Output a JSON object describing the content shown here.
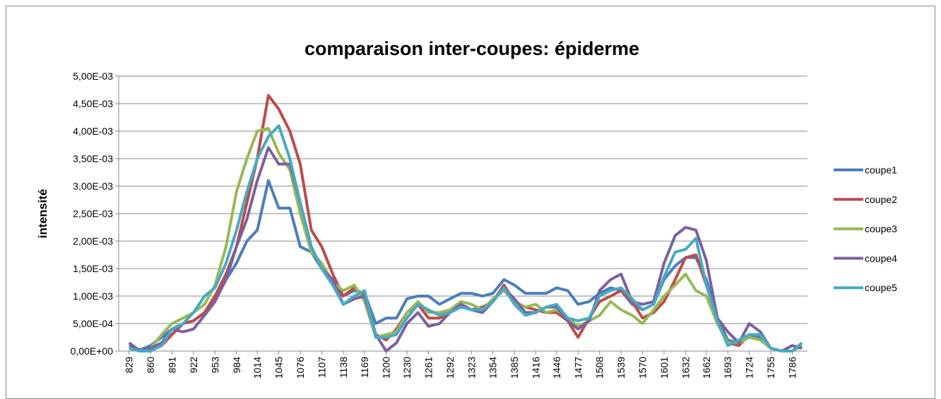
{
  "chart_data": {
    "type": "line",
    "title": "comparaison inter-coupes: épiderme",
    "y_label": "intensité",
    "x": [
      829,
      845,
      860,
      876,
      891,
      907,
      922,
      938,
      953,
      969,
      984,
      999,
      1014,
      1030,
      1045,
      1061,
      1076,
      1092,
      1107,
      1123,
      1138,
      1154,
      1169,
      1185,
      1200,
      1215,
      1230,
      1246,
      1261,
      1277,
      1292,
      1308,
      1323,
      1339,
      1354,
      1370,
      1385,
      1401,
      1416,
      1431,
      1446,
      1462,
      1477,
      1493,
      1508,
      1524,
      1539,
      1555,
      1570,
      1586,
      1601,
      1617,
      1632,
      1647,
      1662,
      1678,
      1693,
      1709,
      1724,
      1740,
      1755,
      1771,
      1786,
      1800
    ],
    "xlim": [
      814,
      1808
    ],
    "xticks": [
      829,
      860,
      891,
      922,
      953,
      984,
      1014,
      1045,
      1076,
      1107,
      1138,
      1169,
      1200,
      1230,
      1261,
      1292,
      1323,
      1354,
      1385,
      1416,
      1446,
      1477,
      1508,
      1539,
      1570,
      1601,
      1632,
      1662,
      1693,
      1724,
      1755,
      1786
    ],
    "ylim": [
      0,
      0.005
    ],
    "yticks": [
      {
        "value": 0,
        "label": "0,00E+00"
      },
      {
        "value": 0.0005,
        "label": "5,00E-04"
      },
      {
        "value": 0.001,
        "label": "1,00E-03"
      },
      {
        "value": 0.0015,
        "label": "1,50E-03"
      },
      {
        "value": 0.002,
        "label": "2,00E-03"
      },
      {
        "value": 0.0025,
        "label": "2,50E-03"
      },
      {
        "value": 0.003,
        "label": "3,00E-03"
      },
      {
        "value": 0.0035,
        "label": "3,50E-03"
      },
      {
        "value": 0.004,
        "label": "4,00E-03"
      },
      {
        "value": 0.0045,
        "label": "4,50E-03"
      },
      {
        "value": 0.005,
        "label": "5,00E-03"
      }
    ],
    "grid": true,
    "legend": "right",
    "series": [
      {
        "name": "coupe1",
        "color": "#4a7ebb",
        "values": [
          0.0001,
          2e-05,
          0.0001,
          0.00025,
          0.0004,
          0.0005,
          0.00055,
          0.0007,
          0.001,
          0.0013,
          0.0016,
          0.002,
          0.0022,
          0.0031,
          0.0026,
          0.0026,
          0.0019,
          0.0018,
          0.0015,
          0.0012,
          0.001,
          0.0011,
          0.00105,
          0.0005,
          0.0006,
          0.0006,
          0.00095,
          0.001,
          0.001,
          0.00085,
          0.00095,
          0.00105,
          0.00105,
          0.001,
          0.00105,
          0.0013,
          0.0012,
          0.00105,
          0.00105,
          0.00105,
          0.00115,
          0.0011,
          0.00085,
          0.0009,
          0.00105,
          0.00115,
          0.0011,
          0.00085,
          0.00075,
          0.00085,
          0.0013,
          0.00155,
          0.0017,
          0.0017,
          0.0013,
          0.0006,
          0.0002,
          0.00015,
          0.0003,
          0.00025,
          5e-05,
          0,
          0,
          0.0001
        ]
      },
      {
        "name": "coupe2",
        "color": "#be4b48",
        "values": [
          5e-05,
          0,
          0,
          0.0001,
          0.0003,
          0.0005,
          0.00055,
          0.0007,
          0.001,
          0.0014,
          0.0019,
          0.0027,
          0.0035,
          0.00465,
          0.0044,
          0.004,
          0.0034,
          0.0022,
          0.0019,
          0.0014,
          0.001,
          0.00115,
          0.001,
          0.0003,
          0.0002,
          0.0004,
          0.0007,
          0.00085,
          0.0006,
          0.0006,
          0.0007,
          0.00085,
          0.00075,
          0.0008,
          0.0009,
          0.0012,
          0.0009,
          0.0008,
          0.00075,
          0.0007,
          0.0007,
          0.00055,
          0.00025,
          0.0006,
          0.0009,
          0.001,
          0.0011,
          0.0009,
          0.0006,
          0.0007,
          0.0009,
          0.0013,
          0.0017,
          0.00175,
          0.0012,
          0.00055,
          0.00015,
          0.0001,
          0.0003,
          0.0003,
          5e-05,
          0,
          0,
          0.0001
        ]
      },
      {
        "name": "coupe3",
        "color": "#98b954",
        "values": [
          5e-05,
          0,
          5e-05,
          0.0003,
          0.0005,
          0.0006,
          0.0007,
          0.00085,
          0.0012,
          0.0019,
          0.0029,
          0.0035,
          0.004,
          0.00405,
          0.0036,
          0.0033,
          0.0025,
          0.0018,
          0.0016,
          0.00125,
          0.0011,
          0.0012,
          0.0009,
          0.00025,
          0.0003,
          0.00035,
          0.0007,
          0.0009,
          0.0007,
          0.0007,
          0.00075,
          0.0009,
          0.00085,
          0.00075,
          0.00095,
          0.0011,
          0.0009,
          0.0008,
          0.00085,
          0.0007,
          0.00075,
          0.0006,
          0.00045,
          0.00055,
          0.00065,
          0.0009,
          0.00075,
          0.00065,
          0.0005,
          0.00075,
          0.001,
          0.0012,
          0.0014,
          0.0011,
          0.001,
          0.0005,
          0.00015,
          0.00015,
          0.00025,
          0.0002,
          5e-05,
          0,
          0,
          0.0001
        ]
      },
      {
        "name": "coupe4",
        "color": "#7d60a0",
        "values": [
          0.00015,
          0,
          5e-05,
          0.00015,
          0.0004,
          0.00035,
          0.0004,
          0.00065,
          0.0009,
          0.0013,
          0.0019,
          0.0024,
          0.0031,
          0.0037,
          0.0034,
          0.0034,
          0.0027,
          0.0019,
          0.0015,
          0.0013,
          0.00085,
          0.00095,
          0.001,
          0.0003,
          0,
          0.00015,
          0.0005,
          0.0007,
          0.00045,
          0.0005,
          0.0007,
          0.00085,
          0.00075,
          0.0007,
          0.0009,
          0.00115,
          0.00095,
          0.0007,
          0.0007,
          0.0008,
          0.0008,
          0.00055,
          0.0004,
          0.00055,
          0.0011,
          0.0013,
          0.0014,
          0.0009,
          0.00085,
          0.0009,
          0.0016,
          0.0021,
          0.00225,
          0.0022,
          0.00165,
          0.0006,
          0.00035,
          0.00015,
          0.0005,
          0.00035,
          5e-05,
          0,
          0.0001,
          5e-05
        ]
      },
      {
        "name": "coupe5",
        "color": "#46aac5",
        "values": [
          5e-05,
          0,
          0,
          0.0001,
          0.0004,
          0.0005,
          0.0007,
          0.001,
          0.00115,
          0.0016,
          0.0022,
          0.0029,
          0.0035,
          0.0039,
          0.0041,
          0.0035,
          0.0027,
          0.0019,
          0.0015,
          0.0012,
          0.00085,
          0.001,
          0.0011,
          0.00025,
          0.00025,
          0.0003,
          0.0006,
          0.00085,
          0.00075,
          0.00065,
          0.0007,
          0.0008,
          0.00075,
          0.00075,
          0.0009,
          0.00115,
          0.00085,
          0.00065,
          0.0007,
          0.0008,
          0.00085,
          0.0006,
          0.00055,
          0.0006,
          0.001,
          0.0011,
          0.00115,
          0.00095,
          0.00075,
          0.00085,
          0.00135,
          0.0018,
          0.00185,
          0.00205,
          0.0012,
          0.00055,
          0.0001,
          0.0002,
          0.0003,
          0.0003,
          5e-05,
          0,
          0,
          0.00015
        ]
      }
    ]
  }
}
